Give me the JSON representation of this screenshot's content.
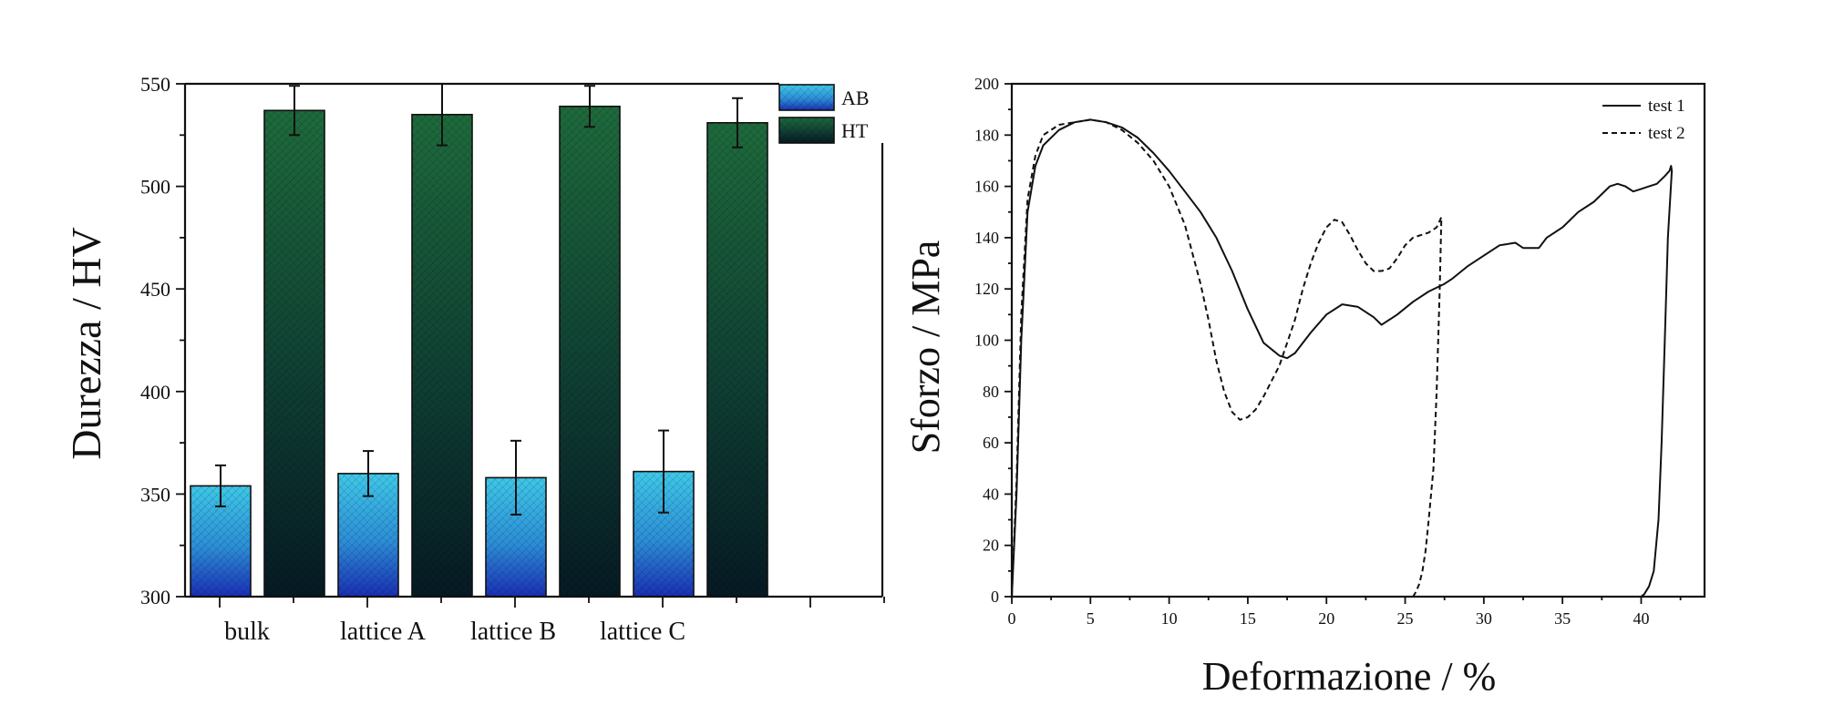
{
  "chart_data": [
    {
      "type": "bar",
      "title": "",
      "xlabel": "",
      "ylabel": "Durezza / HV",
      "ylim": [
        300,
        550
      ],
      "yticks": [
        300,
        350,
        400,
        450,
        500,
        550
      ],
      "categories": [
        "bulk",
        "lattice A",
        "lattice B",
        "lattice C"
      ],
      "series": [
        {
          "name": "AB",
          "color_top": "#3fc8e8",
          "color_bottom": "#1a2fb5",
          "values": [
            354,
            360,
            358,
            361
          ],
          "errors": [
            10,
            11,
            18,
            20
          ]
        },
        {
          "name": "HT",
          "color_top": "#1e6a3c",
          "color_bottom": "#061a24",
          "values": [
            537,
            535,
            539,
            531
          ],
          "errors": [
            12,
            15,
            10,
            12
          ]
        }
      ],
      "legend": "top-right"
    },
    {
      "type": "line",
      "title": "",
      "xlabel": "Deformazione / %",
      "ylabel": "Sforzo / MPa",
      "xlim": [
        0,
        42
      ],
      "ylim": [
        0,
        200
      ],
      "xticks": [
        0,
        5,
        10,
        15,
        20,
        25,
        30,
        35,
        40
      ],
      "yticks": [
        0,
        20,
        40,
        60,
        80,
        100,
        120,
        140,
        160,
        180,
        200
      ],
      "legend": "top-right",
      "series": [
        {
          "name": "test 1",
          "style": "solid",
          "x": [
            0,
            0.3,
            0.6,
            1.0,
            1.5,
            2.0,
            3.0,
            4.0,
            5.0,
            6.0,
            7.0,
            8.0,
            9.0,
            10.0,
            11.0,
            12.0,
            13.0,
            14.0,
            15.0,
            16.0,
            17.0,
            17.5,
            18.0,
            19.0,
            20.0,
            21.0,
            22.0,
            23.0,
            23.5,
            24.5,
            25.5,
            26.5,
            27.5,
            28.0,
            29.0,
            30.0,
            31.0,
            32.0,
            32.5,
            33.5,
            34.0,
            35.0,
            36.0,
            37.0,
            38.0,
            38.5,
            39.0,
            39.5,
            40.0,
            40.5,
            41.0,
            41.5,
            41.8,
            41.9,
            41.95,
            41.7,
            41.5,
            41.3,
            41.1,
            40.8,
            40.5,
            40.2,
            40.0
          ],
          "y": [
            0,
            40,
            100,
            150,
            168,
            176,
            182,
            185,
            186,
            185,
            183,
            179,
            173,
            166,
            158,
            150,
            140,
            127,
            112,
            99,
            94,
            93,
            95,
            103,
            110,
            114,
            113,
            109,
            106,
            110,
            115,
            119,
            122,
            124,
            129,
            133,
            137,
            138,
            136,
            136,
            140,
            144,
            150,
            154,
            160,
            161,
            160,
            158,
            159,
            160,
            161,
            164,
            166,
            168,
            166,
            140,
            100,
            60,
            30,
            10,
            4,
            1,
            0
          ]
        },
        {
          "name": "test 2",
          "style": "dashed",
          "x": [
            0,
            0.3,
            0.6,
            1.0,
            1.5,
            2.0,
            3.0,
            4.0,
            5.0,
            6.0,
            7.0,
            8.0,
            9.0,
            10.0,
            11.0,
            12.0,
            12.5,
            13.0,
            13.5,
            14.0,
            14.5,
            15.0,
            15.5,
            16.0,
            17.0,
            18.0,
            18.5,
            19.0,
            19.5,
            20.0,
            20.5,
            21.0,
            21.5,
            22.0,
            22.5,
            23.0,
            23.5,
            24.0,
            24.5,
            25.0,
            25.5,
            26.0,
            26.5,
            27.0,
            27.3,
            27.2,
            27.0,
            26.8,
            26.5,
            26.3,
            26.1,
            25.9,
            25.7,
            25.5
          ],
          "y": [
            0,
            45,
            110,
            155,
            172,
            180,
            184,
            185,
            186,
            185,
            182,
            177,
            170,
            160,
            145,
            122,
            108,
            92,
            80,
            72,
            69,
            70,
            73,
            78,
            90,
            108,
            120,
            130,
            138,
            144,
            147,
            146,
            141,
            135,
            130,
            127,
            127,
            128,
            132,
            137,
            140,
            141,
            142,
            144,
            148,
            120,
            80,
            50,
            30,
            18,
            10,
            5,
            2,
            0
          ]
        }
      ]
    }
  ]
}
